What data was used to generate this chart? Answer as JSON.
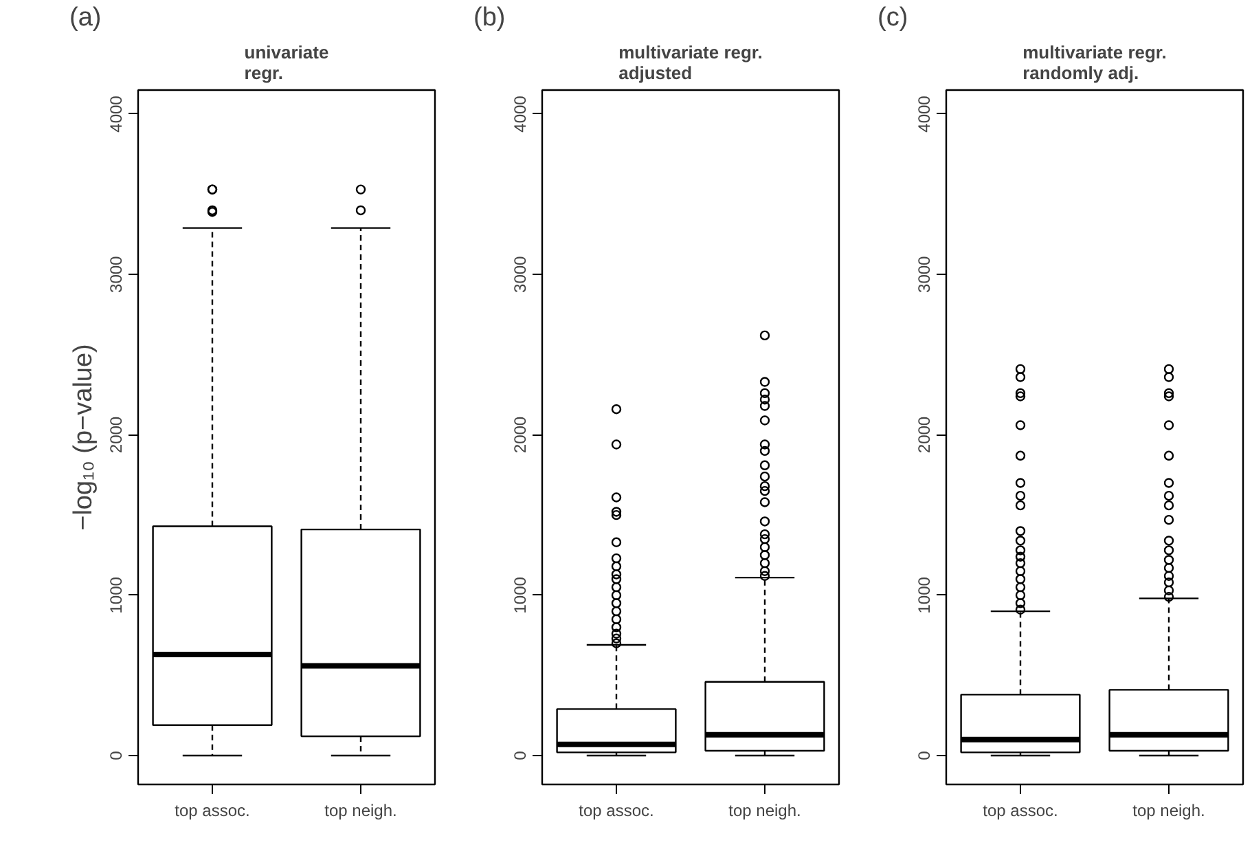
{
  "chart_data": [
    {
      "type": "box",
      "title": "univariate\nregr.",
      "ylabel": "−log₁₀ (p−value)",
      "annotations": [
        "(a)"
      ],
      "categories": [
        "top assoc.",
        "top neigh."
      ],
      "ylim": [
        -180,
        4150
      ],
      "yticks": [
        0,
        1000,
        2000,
        3000,
        4000
      ],
      "grid": false,
      "boxes": [
        {
          "low": 0,
          "q1": 190,
          "median": 630,
          "q3": 1430,
          "high": 3290,
          "outliers": [
            3390,
            3400,
            3530,
            3530
          ]
        },
        {
          "low": 0,
          "q1": 120,
          "median": 560,
          "q3": 1410,
          "high": 3290,
          "outliers": [
            3400,
            3530
          ]
        }
      ]
    },
    {
      "type": "box",
      "title": "multivariate regr.\nadjusted",
      "annotations": [
        "(b)"
      ],
      "categories": [
        "top assoc.",
        "top neigh."
      ],
      "ylim": [
        -180,
        4150
      ],
      "yticks": [
        0,
        1000,
        2000,
        3000,
        4000
      ],
      "grid": false,
      "boxes": [
        {
          "low": 0,
          "q1": 20,
          "median": 70,
          "q3": 290,
          "high": 690,
          "outliers": [
            700,
            730,
            760,
            800,
            850,
            900,
            950,
            1000,
            1050,
            1100,
            1130,
            1180,
            1230,
            1330,
            1500,
            1520,
            1610,
            1940,
            2160
          ]
        },
        {
          "low": 0,
          "q1": 30,
          "median": 130,
          "q3": 460,
          "high": 1110,
          "outliers": [
            1120,
            1150,
            1200,
            1250,
            1300,
            1350,
            1380,
            1460,
            1580,
            1650,
            1680,
            1740,
            1810,
            1900,
            1940,
            2090,
            2180,
            2220,
            2260,
            2330,
            2620
          ]
        }
      ]
    },
    {
      "type": "box",
      "title": "multivariate regr.\nrandomly adj.",
      "annotations": [
        "(c)"
      ],
      "categories": [
        "top assoc.",
        "top neigh."
      ],
      "ylim": [
        -180,
        4150
      ],
      "yticks": [
        0,
        1000,
        2000,
        3000,
        4000
      ],
      "grid": false,
      "boxes": [
        {
          "low": 0,
          "q1": 20,
          "median": 100,
          "q3": 380,
          "high": 900,
          "outliers": [
            910,
            950,
            1000,
            1050,
            1100,
            1150,
            1200,
            1240,
            1280,
            1340,
            1400,
            1560,
            1620,
            1700,
            1870,
            2060,
            2240,
            2260,
            2360,
            2410
          ]
        },
        {
          "low": 0,
          "q1": 30,
          "median": 130,
          "q3": 410,
          "high": 980,
          "outliers": [
            990,
            1030,
            1080,
            1120,
            1170,
            1220,
            1280,
            1340,
            1470,
            1560,
            1620,
            1700,
            1870,
            2060,
            2240,
            2260,
            2360,
            2410
          ]
        }
      ]
    }
  ]
}
